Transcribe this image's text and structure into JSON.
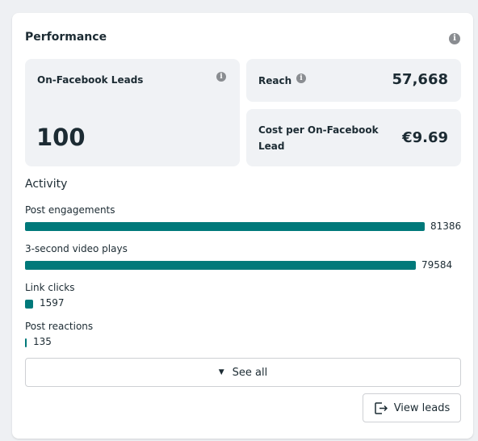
{
  "performance": {
    "title": "Performance",
    "info_icon": "info-icon",
    "leads": {
      "label": "On-Facebook Leads",
      "value": "100"
    },
    "reach": {
      "label": "Reach",
      "value": "57,668"
    },
    "cost": {
      "label_line1": "Cost per On-Facebook",
      "label_line2": "Lead",
      "value": "€9.69"
    }
  },
  "activity": {
    "title": "Activity",
    "items": [
      {
        "label": "Post engagements",
        "value": "81386",
        "fraction": 0.921
      },
      {
        "label": "3-second video plays",
        "value": "79584",
        "fraction": 0.9
      },
      {
        "label": "Link clicks",
        "value": "1597",
        "fraction": 0.018
      },
      {
        "label": "Post reactions",
        "value": "135",
        "fraction": 0.0015
      }
    ]
  },
  "buttons": {
    "see_all": "See all",
    "see_all_icon": "chevron-down-icon",
    "view_leads": "View leads",
    "view_leads_icon": "export-icon"
  },
  "colors": {
    "bar": "#00797a",
    "tile_bg": "#f0f2f5"
  }
}
